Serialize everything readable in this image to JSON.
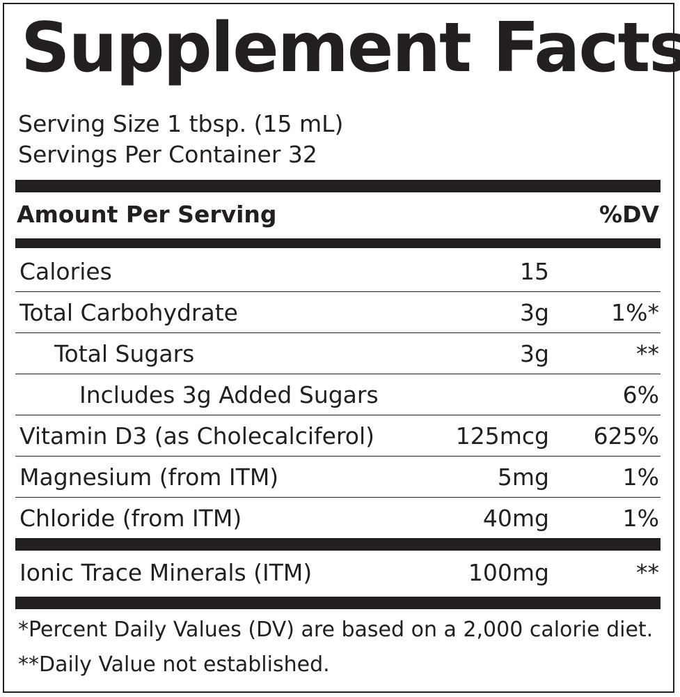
{
  "title": "Supplement Facts",
  "serving_size": "Serving Size 1 tbsp. (15 mL)",
  "servings_per_container": "Servings Per Container 32",
  "header": {
    "amount": "Amount Per Serving",
    "dv": "%DV"
  },
  "rows": [
    {
      "name": "Calories",
      "amount": "15",
      "dv": "",
      "indent": 0
    },
    {
      "name": "Total Carbohydrate",
      "amount": "3g",
      "dv": "1%*",
      "indent": 0
    },
    {
      "name": "Total Sugars",
      "amount": "3g",
      "dv": "**",
      "indent": 1
    },
    {
      "name": "Includes 3g Added Sugars",
      "amount": "",
      "dv": "6%",
      "indent": 2
    },
    {
      "name": "Vitamin D3 (as Cholecalciferol)",
      "amount": "125mcg",
      "dv": "625%",
      "indent": 0
    },
    {
      "name": "Magnesium (from ITM)",
      "amount": "5mg",
      "dv": "1%",
      "indent": 0
    },
    {
      "name": "Chloride (from ITM)",
      "amount": "40mg",
      "dv": "1%",
      "indent": 0
    }
  ],
  "blend": {
    "name": "Ionic Trace Minerals (ITM)",
    "amount": "100mg",
    "dv": "**"
  },
  "footnotes": [
    "*Percent Daily Values (DV) are based on a 2,000 calorie diet.",
    "**Daily Value not established."
  ]
}
